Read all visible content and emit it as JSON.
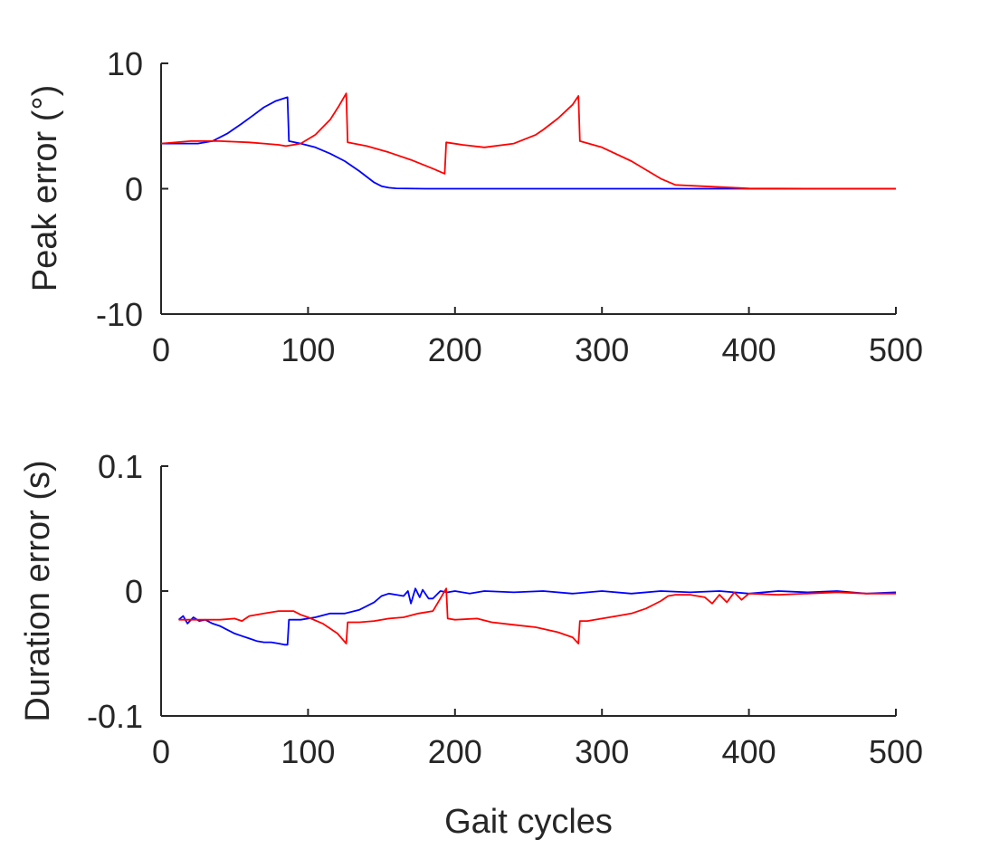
{
  "chart_data": [
    {
      "type": "line",
      "ylabel": "Peak error (°)",
      "xlabel": "",
      "xlim": [
        0,
        500
      ],
      "ylim": [
        -10,
        10
      ],
      "xticks": [
        0,
        100,
        200,
        300,
        400,
        500
      ],
      "yticks": [
        -10,
        0,
        10
      ],
      "xtick_labels": [
        "0",
        "100",
        "200",
        "300",
        "400",
        "500"
      ],
      "ytick_labels": [
        "-10",
        "0",
        "10"
      ],
      "grid": false,
      "series": [
        {
          "color": "#0000ff",
          "x": [
            0,
            10,
            25,
            35,
            45,
            55,
            62,
            70,
            78,
            86,
            87,
            95,
            105,
            115,
            125,
            135,
            145,
            150,
            155,
            160,
            180,
            200,
            300,
            400,
            500
          ],
          "y": [
            3.6,
            3.6,
            3.6,
            3.8,
            4.4,
            5.2,
            5.8,
            6.5,
            7.0,
            7.3,
            3.8,
            3.6,
            3.3,
            2.8,
            2.2,
            1.4,
            0.5,
            0.2,
            0.08,
            0.03,
            0.0,
            0.0,
            0.0,
            0.0,
            0.0
          ]
        },
        {
          "color": "#ff0000",
          "x": [
            0,
            20,
            40,
            60,
            70,
            80,
            85,
            95,
            105,
            115,
            121,
            126,
            127,
            140,
            155,
            170,
            185,
            193,
            194,
            205,
            220,
            240,
            255,
            260,
            270,
            280,
            284,
            285,
            300,
            320,
            340,
            350,
            400,
            450,
            500
          ],
          "y": [
            3.6,
            3.8,
            3.8,
            3.7,
            3.6,
            3.5,
            3.4,
            3.6,
            4.3,
            5.5,
            6.6,
            7.6,
            3.7,
            3.4,
            2.9,
            2.3,
            1.6,
            1.2,
            3.7,
            3.5,
            3.3,
            3.6,
            4.3,
            4.7,
            5.6,
            6.7,
            7.4,
            3.8,
            3.3,
            2.2,
            0.8,
            0.3,
            0.02,
            0.0,
            0.0
          ]
        }
      ]
    },
    {
      "type": "line",
      "ylabel": "Duration error (s)",
      "xlabel": "Gait cycles",
      "xlim": [
        0,
        500
      ],
      "ylim": [
        -0.1,
        0.1
      ],
      "xticks": [
        0,
        100,
        200,
        300,
        400,
        500
      ],
      "yticks": [
        -0.1,
        0,
        0.1
      ],
      "xtick_labels": [
        "0",
        "100",
        "200",
        "300",
        "400",
        "500"
      ],
      "ytick_labels": [
        "-0.1",
        "0",
        "0.1"
      ],
      "grid": false,
      "series": [
        {
          "color": "#0000ff",
          "x": [
            12,
            15,
            18,
            22,
            26,
            30,
            35,
            40,
            45,
            50,
            55,
            60,
            65,
            70,
            75,
            80,
            84,
            86,
            87,
            95,
            105,
            115,
            125,
            135,
            140,
            145,
            150,
            155,
            160,
            165,
            168,
            170,
            173,
            176,
            178,
            182,
            185,
            190,
            195,
            200,
            210,
            220,
            240,
            260,
            280,
            300,
            320,
            340,
            360,
            380,
            400,
            420,
            440,
            460,
            480,
            500
          ],
          "y": [
            -0.023,
            -0.02,
            -0.026,
            -0.021,
            -0.024,
            -0.023,
            -0.026,
            -0.028,
            -0.031,
            -0.034,
            -0.036,
            -0.038,
            -0.04,
            -0.041,
            -0.041,
            -0.042,
            -0.043,
            -0.043,
            -0.023,
            -0.023,
            -0.021,
            -0.018,
            -0.018,
            -0.015,
            -0.012,
            -0.009,
            -0.004,
            -0.002,
            -0.003,
            -0.004,
            0.0,
            -0.01,
            0.002,
            -0.005,
            0.001,
            -0.006,
            -0.006,
            0.0,
            -0.001,
            0.0,
            -0.002,
            0.0,
            -0.001,
            0.0,
            -0.002,
            0.0,
            -0.002,
            0.0,
            -0.001,
            0.0,
            -0.002,
            0.0,
            -0.001,
            0.0,
            -0.002,
            -0.001
          ]
        },
        {
          "color": "#ff0000",
          "x": [
            12,
            20,
            30,
            40,
            50,
            55,
            60,
            70,
            80,
            90,
            95,
            100,
            110,
            120,
            126,
            127,
            135,
            145,
            155,
            165,
            175,
            185,
            190,
            194,
            195,
            200,
            215,
            225,
            240,
            255,
            270,
            280,
            284,
            285,
            290,
            300,
            310,
            320,
            330,
            340,
            345,
            350,
            360,
            370,
            375,
            380,
            385,
            390,
            395,
            400,
            420,
            440,
            460,
            480,
            500
          ],
          "y": [
            -0.023,
            -0.023,
            -0.023,
            -0.023,
            -0.022,
            -0.024,
            -0.02,
            -0.018,
            -0.016,
            -0.016,
            -0.019,
            -0.021,
            -0.026,
            -0.034,
            -0.042,
            -0.025,
            -0.025,
            -0.024,
            -0.022,
            -0.021,
            -0.018,
            -0.016,
            -0.006,
            0.002,
            -0.022,
            -0.023,
            -0.022,
            -0.025,
            -0.027,
            -0.029,
            -0.033,
            -0.037,
            -0.042,
            -0.024,
            -0.024,
            -0.022,
            -0.02,
            -0.018,
            -0.014,
            -0.008,
            -0.004,
            -0.003,
            -0.003,
            -0.005,
            -0.01,
            -0.003,
            -0.009,
            -0.001,
            -0.007,
            -0.002,
            -0.003,
            -0.002,
            -0.001,
            -0.002,
            -0.002
          ]
        }
      ]
    }
  ]
}
